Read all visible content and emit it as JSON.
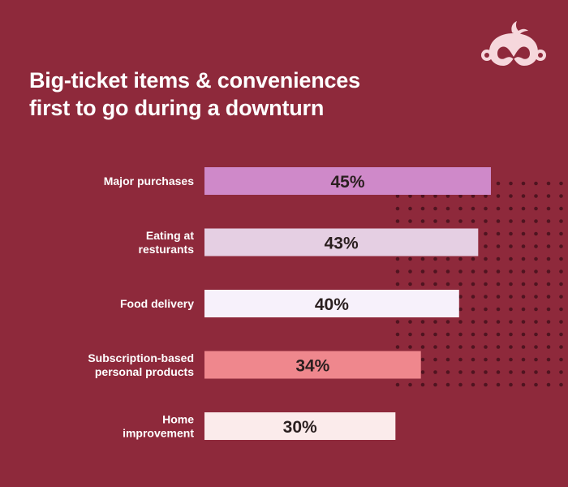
{
  "title_lines": [
    "Big-ticket items & conveniences",
    "first to go during a downturn"
  ],
  "logo": {
    "icon": "surveymonkey-logo-icon",
    "color": "#f6d7dc"
  },
  "colors": {
    "background": "#8e293b",
    "dots": "#4f1420",
    "label_text": "#ffffff",
    "value_text": "#2a1f1f"
  },
  "chart_data": {
    "type": "bar",
    "orientation": "horizontal",
    "title": "Big-ticket items & conveniences first to go during a downturn",
    "categories": [
      [
        "Major purchases"
      ],
      [
        "Eating at",
        "resturants"
      ],
      [
        "Food delivery"
      ],
      [
        "Subscription-based",
        "personal products"
      ],
      [
        "Home",
        "improvement"
      ]
    ],
    "values": [
      45,
      43,
      40,
      34,
      30
    ],
    "value_labels": [
      "45%",
      "43%",
      "40%",
      "34%",
      "30%"
    ],
    "bar_colors": [
      "#cf89c9",
      "#e5cfe3",
      "#f7f1fb",
      "#ef878d",
      "#fbebeb"
    ],
    "xlim": [
      0,
      45
    ],
    "grid": false,
    "legend": "none"
  }
}
